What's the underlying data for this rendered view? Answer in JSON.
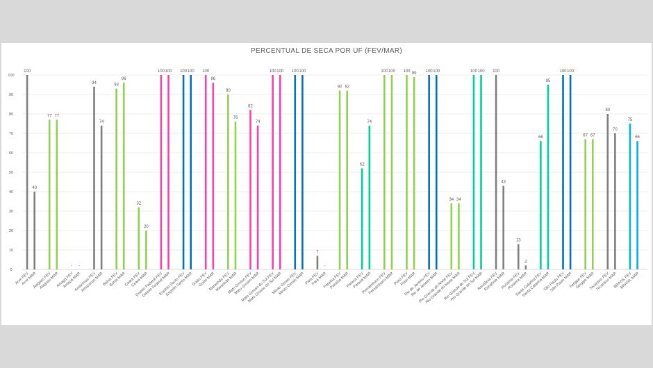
{
  "chart_data": {
    "type": "bar",
    "title": "PERCENTUAL DE SECA POR UF (FEV/MAR)",
    "xlabel": "",
    "ylabel": "",
    "ylim": [
      0,
      100
    ],
    "yticks": [
      0,
      10,
      20,
      30,
      40,
      50,
      60,
      70,
      80,
      90,
      100
    ],
    "grid": true,
    "categories": [
      "Acre FEV",
      "Acre MAR",
      "Alagoas FEV",
      "Alagoas MAR",
      "Amapá FEV",
      "Amapá MAR",
      "Amazonas FEV",
      "Amazonas MAR",
      "Bahia FEV",
      "Bahia MAR",
      "Ceará FEV",
      "Ceará MAR",
      "Distrito Federal FEV",
      "Distrito Federal MAR",
      "Espírito Santo FEV",
      "Espírito Santo MAR",
      "Goiás FEV",
      "Goiás MAR",
      "Maranhão FEV",
      "Maranhão MAR",
      "Mato Grosso FEV",
      "Mato Grosso MAR",
      "Mato Grosso do Sul FEV",
      "Mato Grosso do Sul MAR",
      "Minas Gerais FEV",
      "Minas Gerais MAR",
      "Pará FEV",
      "Pará MAR",
      "Paraíba FEV",
      "Paraíba MAR",
      "Paraná FEV",
      "Paraná MAR",
      "Pernambuco FEV",
      "Pernambuco MAR",
      "Piauí FEV",
      "Piauí MAR",
      "Rio de Janeiro FEV",
      "Rio de Janeiro MAR",
      "Rio Grande do Norte FEV",
      "Rio Grande do Norte MAR",
      "Rio Grande do Sul FEV",
      "Rio Grande do Sul MAR",
      "Rondônia FEV",
      "Rondônia MAR",
      "Roraima FEV",
      "Roraima MAR",
      "Santa Catarina FEV",
      "Santa Catarina MAR",
      "São Paulo FEV",
      "São Paulo MAR",
      "Sergipe FEV",
      "Sergipe MAR",
      "Tocantins FEV",
      "Tocantins MAR",
      "BRASIL FEV",
      "BRASIL MAR"
    ],
    "values": [
      100,
      40,
      77,
      77,
      0,
      0,
      94,
      74,
      93,
      96,
      32,
      20,
      100,
      100,
      100,
      100,
      100,
      96,
      90,
      76,
      82,
      74,
      100,
      100,
      100,
      100,
      7,
      0,
      92,
      92,
      52,
      74,
      100,
      100,
      100,
      99,
      100,
      100,
      34,
      34,
      100,
      100,
      100,
      43,
      13,
      2,
      66,
      95,
      100,
      100,
      67,
      67,
      80,
      70,
      75,
      66
    ],
    "labels": [
      "100",
      "40",
      "77",
      "77",
      "-",
      "-",
      "94",
      "74",
      "93",
      "96",
      "32",
      "20",
      "100",
      "100",
      "100",
      "100",
      "100",
      "96",
      "90",
      "76",
      "82",
      "74",
      "100",
      "100",
      "100",
      "100",
      "7",
      "-",
      "92",
      "92",
      "52",
      "74",
      "100",
      "100",
      "100",
      "99",
      "100",
      "100",
      "34",
      "34",
      "100",
      "100",
      "100",
      "43",
      "13",
      "2",
      "66",
      "95",
      "100",
      "100",
      "67",
      "67",
      "80",
      "70",
      "75",
      "66"
    ],
    "colors": [
      "#7f7f7f",
      "#7f7f7f",
      "#92d050",
      "#92d050",
      "#7f7f7f",
      "#7f7f7f",
      "#7f7f7f",
      "#7f7f7f",
      "#92d050",
      "#92d050",
      "#92d050",
      "#92d050",
      "#ff3fa4",
      "#ff3fa4",
      "#0070c0",
      "#0070c0",
      "#ff3fa4",
      "#ff3fa4",
      "#92d050",
      "#92d050",
      "#ff3fa4",
      "#ff3fa4",
      "#ff3fa4",
      "#ff3fa4",
      "#0070c0",
      "#0070c0",
      "#7f7f7f",
      "#7f7f7f",
      "#92d050",
      "#92d050",
      "#00d0a0",
      "#00d0a0",
      "#92d050",
      "#92d050",
      "#92d050",
      "#92d050",
      "#0070c0",
      "#0070c0",
      "#92d050",
      "#92d050",
      "#00d0a0",
      "#00d0a0",
      "#7f7f7f",
      "#7f7f7f",
      "#7f7f7f",
      "#7f7f7f",
      "#00d0a0",
      "#00d0a0",
      "#0070c0",
      "#0070c0",
      "#92d050",
      "#92d050",
      "#7f7f7f",
      "#7f7f7f",
      "#00b0f0",
      "#00b0f0"
    ]
  }
}
